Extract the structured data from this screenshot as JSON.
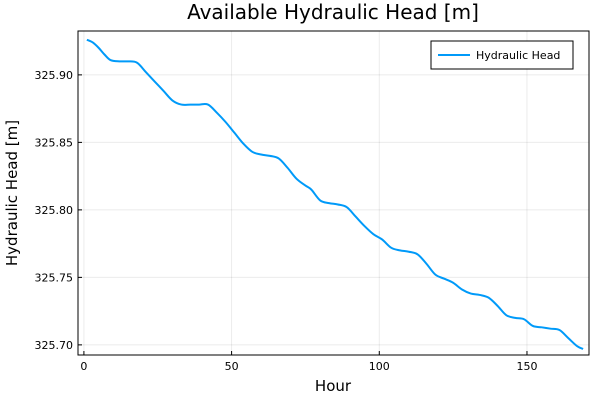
{
  "chart_data": {
    "type": "line",
    "title": "Available Hydraulic Head [m]",
    "xlabel": "Hour",
    "ylabel": "Hydraulic Head [m]",
    "xlim": [
      -2,
      171
    ],
    "ylim": [
      325.6925,
      325.9325
    ],
    "xticks": [
      0,
      50,
      100,
      150
    ],
    "yticks": [
      325.7,
      325.75,
      325.8,
      325.85,
      325.9
    ],
    "ytick_labels": [
      "325.70",
      "325.75",
      "325.80",
      "325.85",
      "325.90"
    ],
    "grid": true,
    "legend_position": "top-right",
    "series": [
      {
        "name": "Hydraulic Head",
        "color": "#009af9",
        "x": [
          1,
          3,
          5,
          7,
          9,
          12,
          15,
          18,
          21,
          24,
          27,
          30,
          33,
          36,
          39,
          42,
          45,
          48,
          51,
          54,
          57,
          60,
          63,
          66,
          69,
          72,
          75,
          77,
          80,
          83,
          86,
          89,
          92,
          95,
          98,
          101,
          104,
          107,
          110,
          113,
          116,
          119,
          122,
          125,
          128,
          131,
          134,
          137,
          140,
          143,
          146,
          149,
          152,
          155,
          158,
          161,
          164,
          167,
          169
        ],
        "values": [
          325.926,
          325.924,
          325.92,
          325.915,
          325.911,
          325.91,
          325.91,
          325.909,
          325.902,
          325.895,
          325.888,
          325.881,
          325.878,
          325.878,
          325.878,
          325.878,
          325.872,
          325.865,
          325.857,
          325.849,
          325.843,
          325.841,
          325.84,
          325.838,
          325.831,
          325.823,
          325.818,
          325.815,
          325.807,
          325.805,
          325.804,
          325.802,
          325.795,
          325.788,
          325.782,
          325.778,
          325.772,
          325.77,
          325.769,
          325.767,
          325.76,
          325.752,
          325.749,
          325.746,
          325.741,
          325.738,
          325.737,
          325.735,
          325.729,
          325.722,
          325.72,
          325.719,
          325.714,
          325.713,
          325.712,
          325.711,
          325.705,
          325.699,
          325.697
        ]
      }
    ]
  }
}
